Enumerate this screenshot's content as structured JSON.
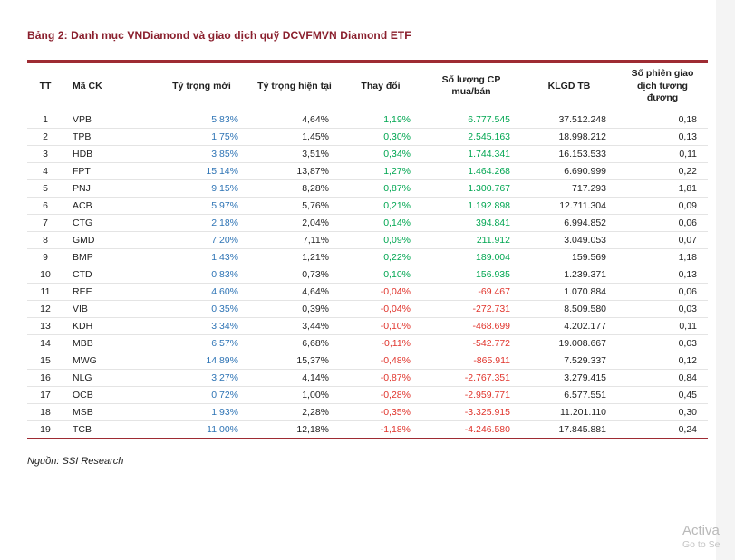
{
  "page": {
    "title": "Bảng 2: Danh mục VNDiamond và giao dịch quỹ DCVFMVN Diamond ETF",
    "source": "Nguồn: SSI Research"
  },
  "watermark": {
    "line1": "Activa",
    "line2": "Go to Se"
  },
  "colors": {
    "accent_red": "#9e2b33",
    "title_red": "#8a1f2d",
    "value_blue": "#2e74b5",
    "positive_green": "#00a651",
    "negative_red": "#e0342c"
  },
  "table": {
    "headers": [
      "TT",
      "Mã CK",
      "Tỷ trọng mới",
      "Tỷ trọng hiện tại",
      "Thay đổi",
      "Số lượng CP mua/bán",
      "KLGD TB",
      "Số phiên giao dịch tương đương"
    ],
    "rows": [
      {
        "tt": "1",
        "ticker": "VPB",
        "new_weight": "5,83%",
        "current_weight": "4,64%",
        "change": "1,19%",
        "shares": "6.777.545",
        "klgd": "37.512.248",
        "sessions": "0,18"
      },
      {
        "tt": "2",
        "ticker": "TPB",
        "new_weight": "1,75%",
        "current_weight": "1,45%",
        "change": "0,30%",
        "shares": "2.545.163",
        "klgd": "18.998.212",
        "sessions": "0,13"
      },
      {
        "tt": "3",
        "ticker": "HDB",
        "new_weight": "3,85%",
        "current_weight": "3,51%",
        "change": "0,34%",
        "shares": "1.744.341",
        "klgd": "16.153.533",
        "sessions": "0,11"
      },
      {
        "tt": "4",
        "ticker": "FPT",
        "new_weight": "15,14%",
        "current_weight": "13,87%",
        "change": "1,27%",
        "shares": "1.464.268",
        "klgd": "6.690.999",
        "sessions": "0,22"
      },
      {
        "tt": "5",
        "ticker": "PNJ",
        "new_weight": "9,15%",
        "current_weight": "8,28%",
        "change": "0,87%",
        "shares": "1.300.767",
        "klgd": "717.293",
        "sessions": "1,81"
      },
      {
        "tt": "6",
        "ticker": "ACB",
        "new_weight": "5,97%",
        "current_weight": "5,76%",
        "change": "0,21%",
        "shares": "1.192.898",
        "klgd": "12.711.304",
        "sessions": "0,09"
      },
      {
        "tt": "7",
        "ticker": "CTG",
        "new_weight": "2,18%",
        "current_weight": "2,04%",
        "change": "0,14%",
        "shares": "394.841",
        "klgd": "6.994.852",
        "sessions": "0,06"
      },
      {
        "tt": "8",
        "ticker": "GMD",
        "new_weight": "7,20%",
        "current_weight": "7,11%",
        "change": "0,09%",
        "shares": "211.912",
        "klgd": "3.049.053",
        "sessions": "0,07"
      },
      {
        "tt": "9",
        "ticker": "BMP",
        "new_weight": "1,43%",
        "current_weight": "1,21%",
        "change": "0,22%",
        "shares": "189.004",
        "klgd": "159.569",
        "sessions": "1,18"
      },
      {
        "tt": "10",
        "ticker": "CTD",
        "new_weight": "0,83%",
        "current_weight": "0,73%",
        "change": "0,10%",
        "shares": "156.935",
        "klgd": "1.239.371",
        "sessions": "0,13"
      },
      {
        "tt": "11",
        "ticker": "REE",
        "new_weight": "4,60%",
        "current_weight": "4,64%",
        "change": "-0,04%",
        "shares": "-69.467",
        "klgd": "1.070.884",
        "sessions": "0,06"
      },
      {
        "tt": "12",
        "ticker": "VIB",
        "new_weight": "0,35%",
        "current_weight": "0,39%",
        "change": "-0,04%",
        "shares": "-272.731",
        "klgd": "8.509.580",
        "sessions": "0,03"
      },
      {
        "tt": "13",
        "ticker": "KDH",
        "new_weight": "3,34%",
        "current_weight": "3,44%",
        "change": "-0,10%",
        "shares": "-468.699",
        "klgd": "4.202.177",
        "sessions": "0,11"
      },
      {
        "tt": "14",
        "ticker": "MBB",
        "new_weight": "6,57%",
        "current_weight": "6,68%",
        "change": "-0,11%",
        "shares": "-542.772",
        "klgd": "19.008.667",
        "sessions": "0,03"
      },
      {
        "tt": "15",
        "ticker": "MWG",
        "new_weight": "14,89%",
        "current_weight": "15,37%",
        "change": "-0,48%",
        "shares": "-865.911",
        "klgd": "7.529.337",
        "sessions": "0,12"
      },
      {
        "tt": "16",
        "ticker": "NLG",
        "new_weight": "3,27%",
        "current_weight": "4,14%",
        "change": "-0,87%",
        "shares": "-2.767.351",
        "klgd": "3.279.415",
        "sessions": "0,84"
      },
      {
        "tt": "17",
        "ticker": "OCB",
        "new_weight": "0,72%",
        "current_weight": "1,00%",
        "change": "-0,28%",
        "shares": "-2.959.771",
        "klgd": "6.577.551",
        "sessions": "0,45"
      },
      {
        "tt": "18",
        "ticker": "MSB",
        "new_weight": "1,93%",
        "current_weight": "2,28%",
        "change": "-0,35%",
        "shares": "-3.325.915",
        "klgd": "11.201.110",
        "sessions": "0,30"
      },
      {
        "tt": "19",
        "ticker": "TCB",
        "new_weight": "11,00%",
        "current_weight": "12,18%",
        "change": "-1,18%",
        "shares": "-4.246.580",
        "klgd": "17.845.881",
        "sessions": "0,24"
      }
    ]
  }
}
